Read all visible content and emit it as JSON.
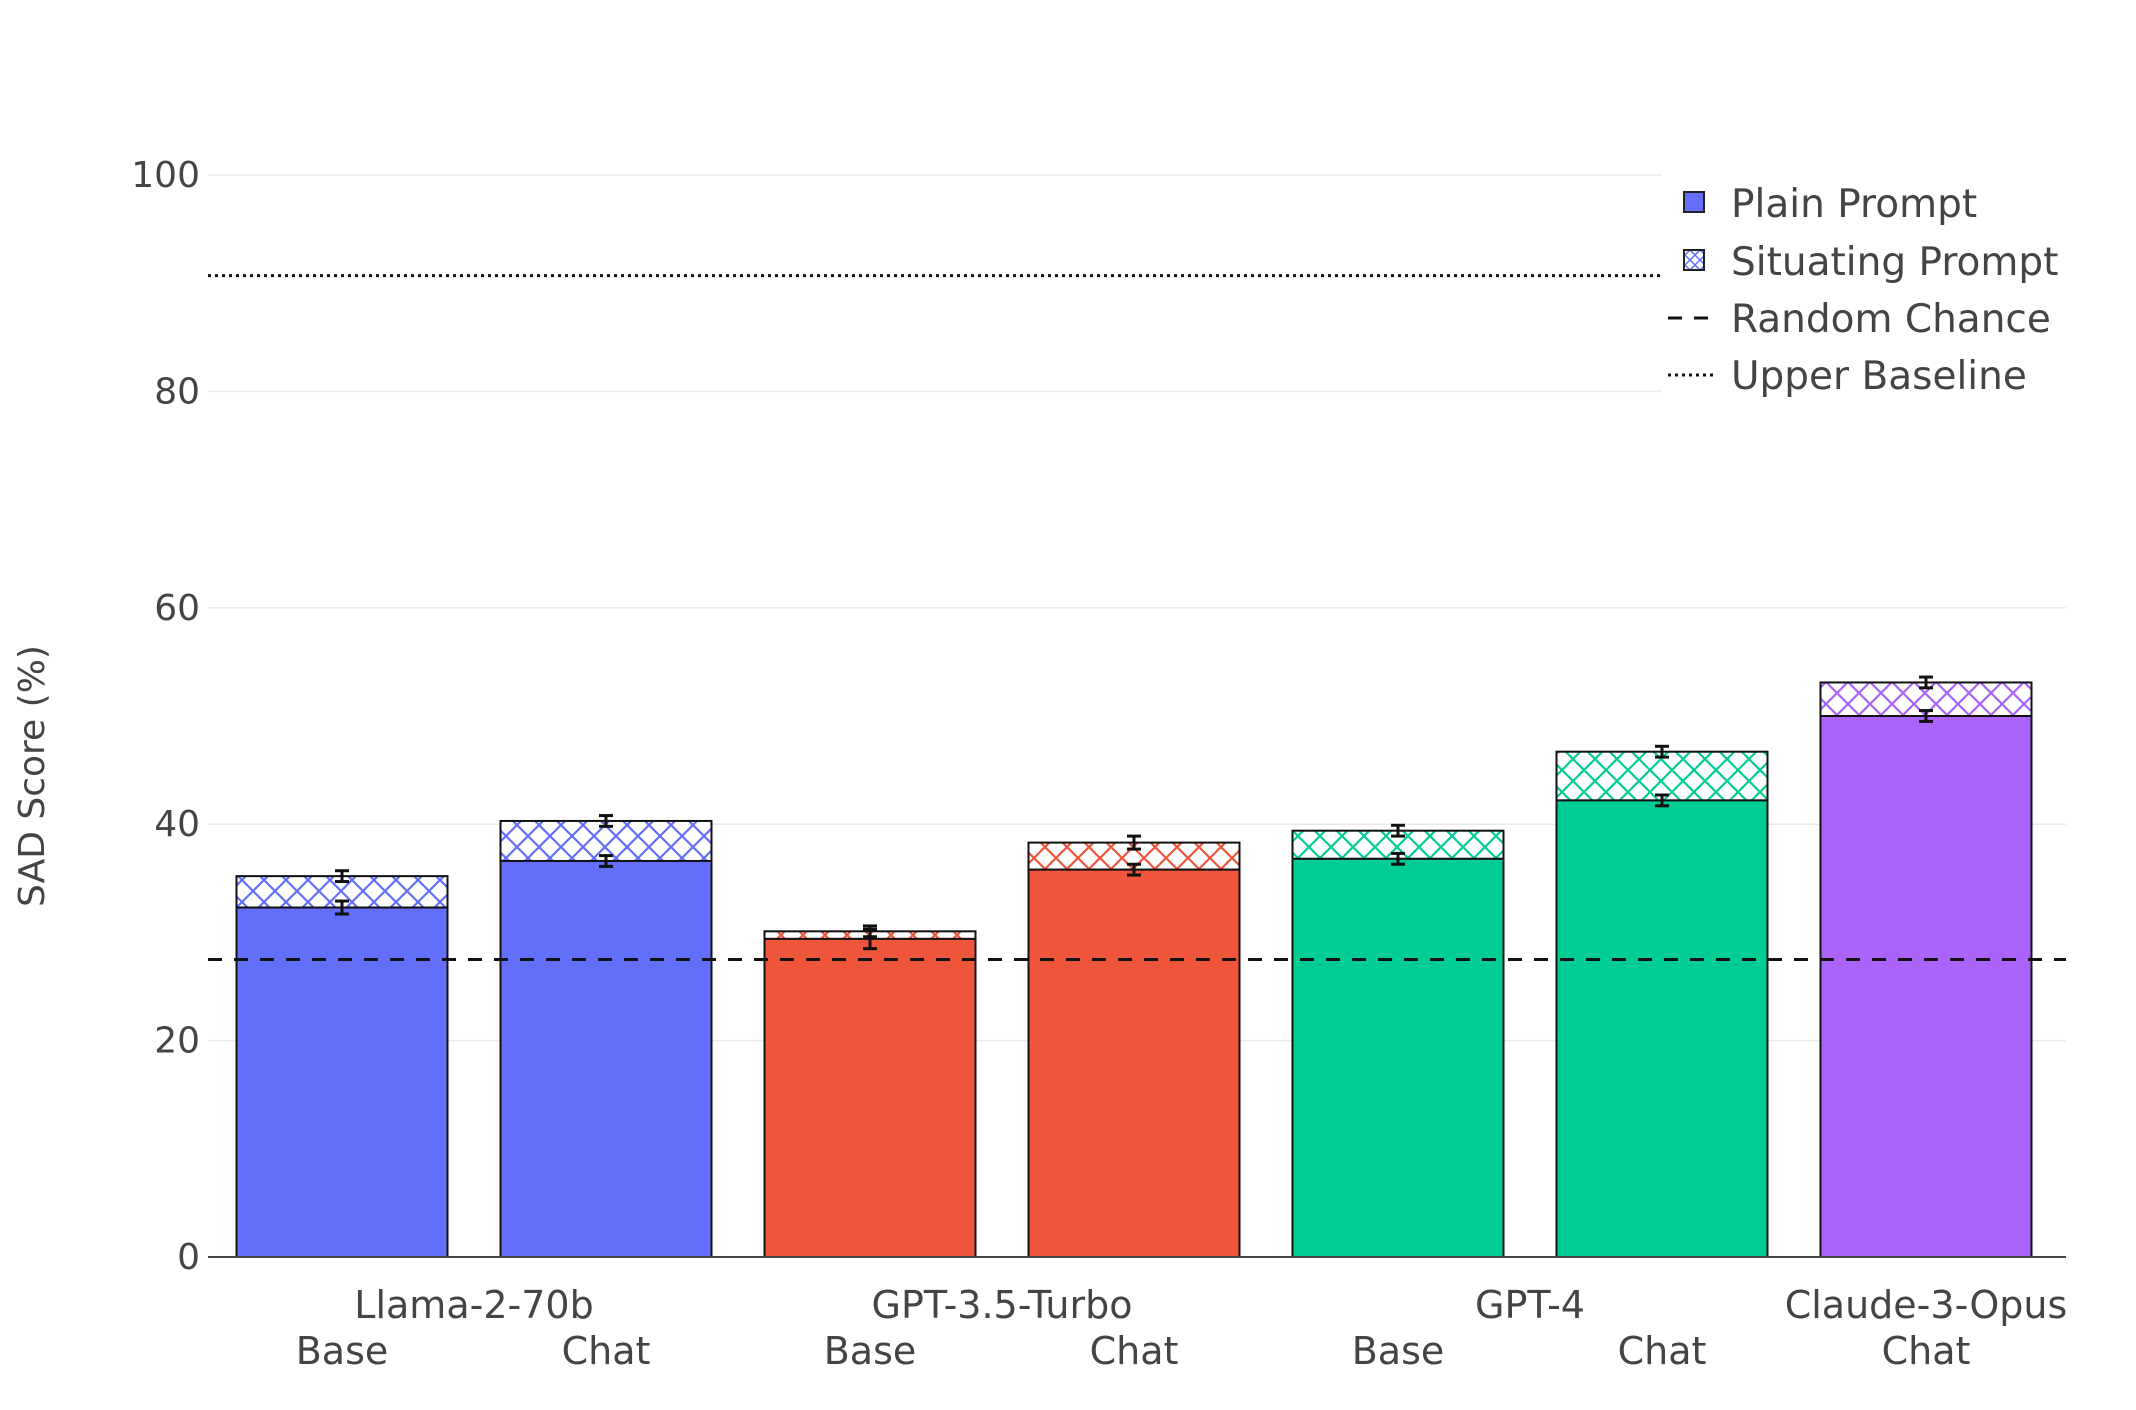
{
  "chart_data": {
    "type": "bar",
    "stacking": "overlay",
    "y_axis": {
      "label": "SAD Score (%)",
      "range": [
        0,
        100
      ],
      "ticks": [
        0,
        20,
        40,
        60,
        80,
        100
      ],
      "grid": true
    },
    "groups": [
      {
        "label": "Llama-2-70b",
        "color": "#636efa",
        "bars": [
          {
            "label": "Base",
            "plain": 32.3,
            "plain_err": 0.6,
            "situating": 35.2,
            "situating_err": 0.5
          },
          {
            "label": "Chat",
            "plain": 36.6,
            "plain_err": 0.5,
            "situating": 40.3,
            "situating_err": 0.5
          }
        ]
      },
      {
        "label": "GPT-3.5-Turbo",
        "color": "#ef553b",
        "bars": [
          {
            "label": "Base",
            "plain": 29.4,
            "plain_err": 0.9,
            "situating": 30.1,
            "situating_err": 0.5
          },
          {
            "label": "Chat",
            "plain": 35.8,
            "plain_err": 0.5,
            "situating": 38.3,
            "situating_err": 0.6
          }
        ]
      },
      {
        "label": "GPT-4",
        "color": "#00cc96",
        "bars": [
          {
            "label": "Base",
            "plain": 36.8,
            "plain_err": 0.5,
            "situating": 39.4,
            "situating_err": 0.5
          },
          {
            "label": "Chat",
            "plain": 42.2,
            "plain_err": 0.5,
            "situating": 46.7,
            "situating_err": 0.5
          }
        ]
      },
      {
        "label": "Claude-3-Opus",
        "color": "#ab63fa",
        "bars": [
          {
            "label": "Chat",
            "plain": 50.0,
            "plain_err": 0.5,
            "situating": 53.1,
            "situating_err": 0.5
          }
        ]
      }
    ],
    "reference_lines": {
      "random_chance": 27.5,
      "upper_baseline": 90.7
    },
    "legend": {
      "placement": "top-right",
      "entries": [
        "Plain Prompt",
        "Situating Prompt",
        "Random Chance",
        "Upper Baseline"
      ]
    }
  }
}
